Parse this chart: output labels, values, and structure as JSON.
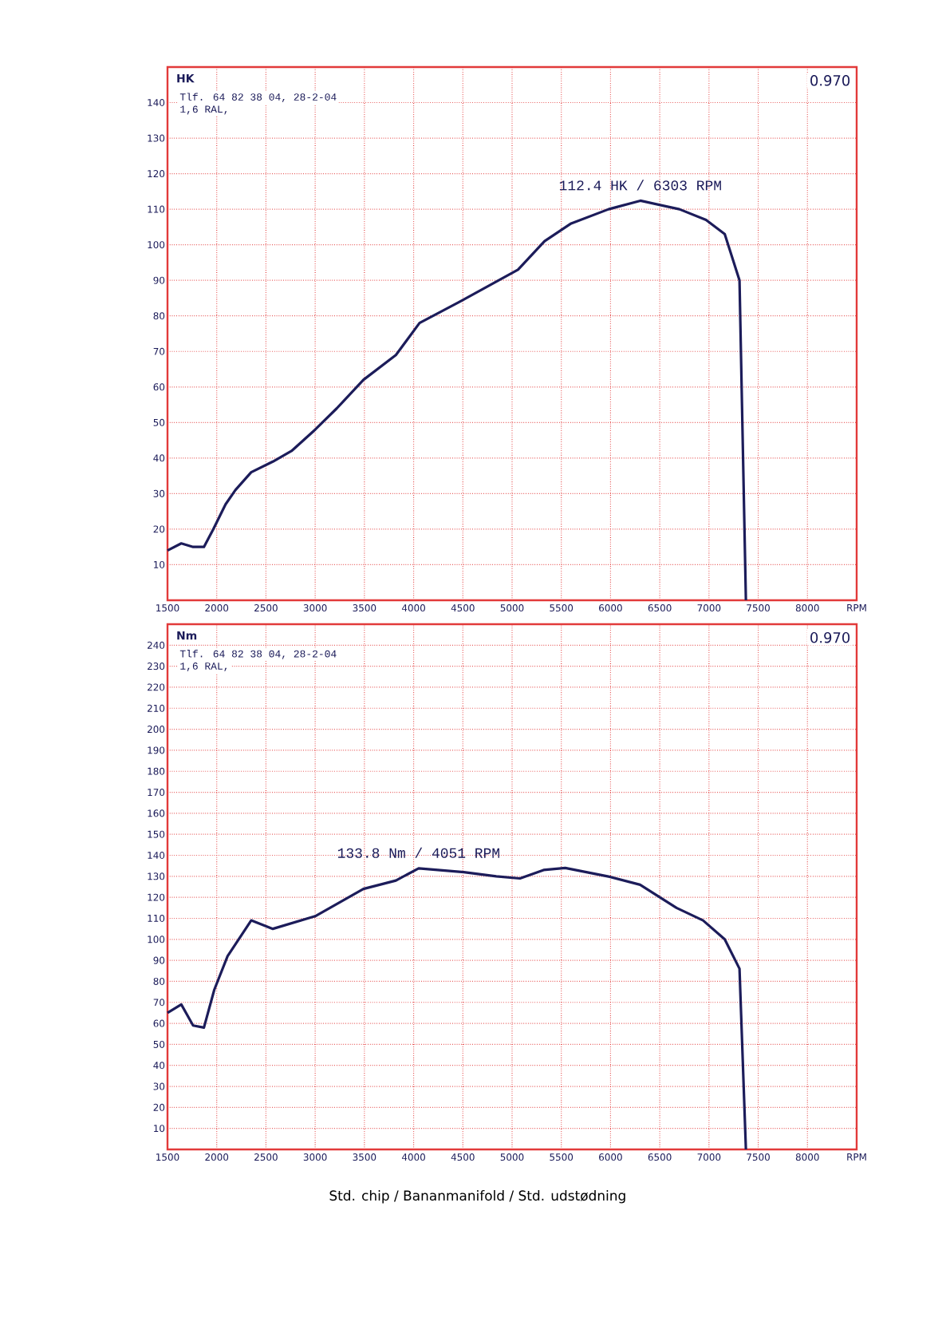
{
  "chart_data": [
    {
      "type": "line",
      "ylabel": "HK",
      "xlim": [
        1500,
        8500
      ],
      "ylim": [
        0,
        150
      ],
      "xticks": [
        1500,
        2000,
        2500,
        3000,
        3500,
        4000,
        4500,
        5000,
        5500,
        6000,
        6500,
        7000,
        7500,
        8000,
        {
          "value": 8500,
          "label": "RPM"
        }
      ],
      "yticks": [
        10,
        20,
        30,
        40,
        50,
        60,
        70,
        80,
        90,
        100,
        110,
        120,
        130,
        140
      ],
      "grid": true,
      "x": [
        1500,
        1640,
        1760,
        1870,
        1965,
        2090,
        2190,
        2350,
        2570,
        2760,
        3000,
        3220,
        3490,
        3820,
        4060,
        4470,
        5060,
        5330,
        5600,
        5980,
        6303,
        6700,
        6970,
        7160,
        7310,
        7375
      ],
      "series": [
        {
          "color": "#1c1c5a",
          "values": [
            14,
            16,
            15,
            15,
            20,
            27,
            31,
            36,
            39,
            42,
            48,
            54,
            62,
            69,
            78,
            84,
            93,
            101,
            106,
            110,
            112.4,
            110,
            107,
            103,
            90,
            0
          ]
        }
      ],
      "annotations": [
        "0.970",
        "Tlf. 64 82 38 04, 28-2-04",
        "1,6 RAL,",
        {
          "text": "112.4 HK / 6303 RPM",
          "x": 6303,
          "y": 112.4
        }
      ]
    },
    {
      "type": "line",
      "ylabel": "Nm",
      "xlim": [
        1500,
        8500
      ],
      "ylim": [
        0,
        250
      ],
      "xticks": [
        1500,
        2000,
        2500,
        3000,
        3500,
        4000,
        4500,
        5000,
        5500,
        6000,
        6500,
        7000,
        7500,
        8000,
        {
          "value": 8500,
          "label": "RPM"
        }
      ],
      "yticks": [
        10,
        20,
        30,
        40,
        50,
        60,
        70,
        80,
        90,
        100,
        110,
        120,
        130,
        140,
        150,
        160,
        170,
        180,
        190,
        200,
        210,
        220,
        230,
        240
      ],
      "grid": true,
      "x": [
        1500,
        1640,
        1760,
        1870,
        1975,
        2110,
        2350,
        2570,
        3000,
        3490,
        3820,
        4051,
        4510,
        4840,
        5080,
        5320,
        5540,
        5970,
        6300,
        6670,
        6940,
        7160,
        7310,
        7375
      ],
      "series": [
        {
          "color": "#1c1c5a",
          "values": [
            65,
            69,
            59,
            58,
            76,
            92,
            109,
            105,
            111,
            124,
            128,
            133.8,
            132,
            130,
            129,
            133,
            134,
            130,
            126,
            115,
            109,
            100,
            86,
            0
          ]
        }
      ],
      "annotations": [
        "0.970",
        "Tlf. 64 82 38 04, 28-2-04",
        "1,6 RAL,",
        {
          "text": "133.8 Nm / 4051 RPM",
          "x": 4051,
          "y": 133.8
        },
        "Std. chip / Bananmanifold / Std. udstødning"
      ]
    }
  ]
}
